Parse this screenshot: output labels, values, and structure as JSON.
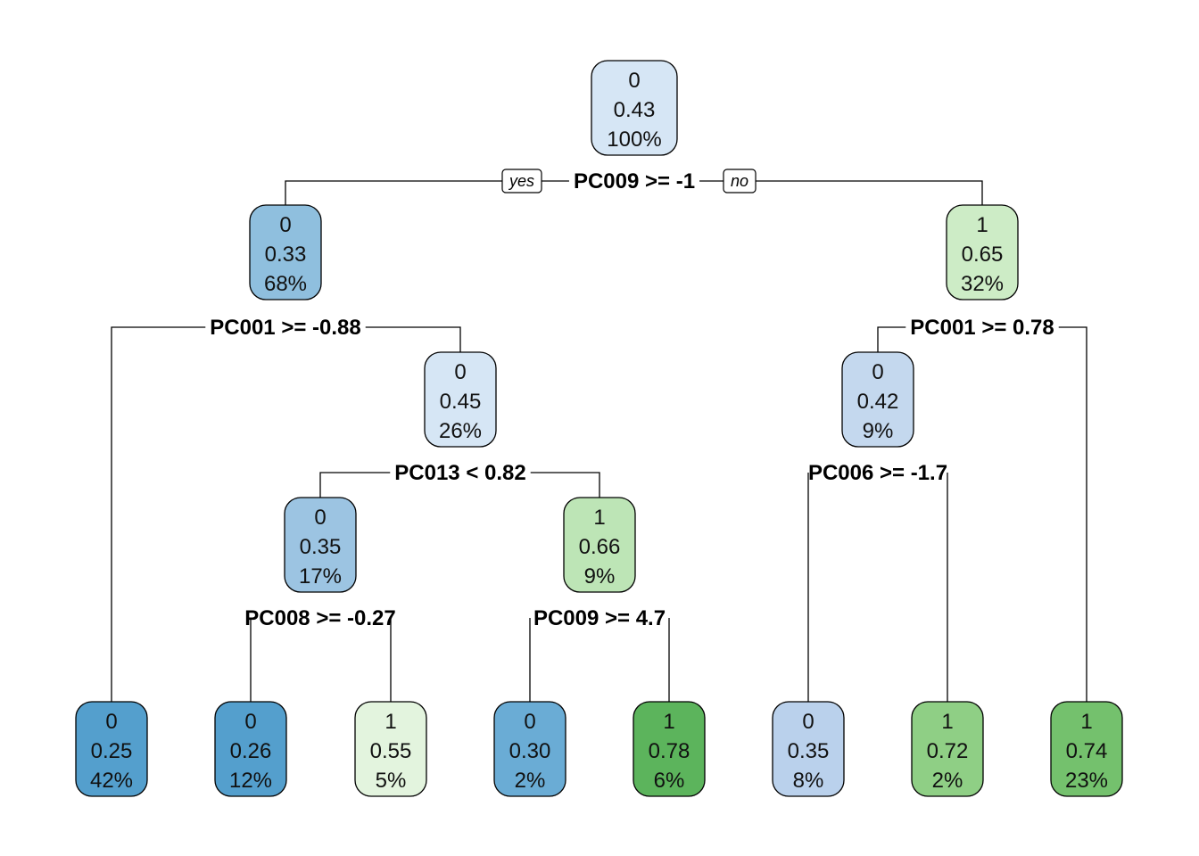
{
  "tree": {
    "branch_labels": {
      "yes": "yes",
      "no": "no"
    },
    "nodes": [
      {
        "id": "n1",
        "class": "0",
        "prob": "0.43",
        "pct": "100%",
        "fill": "#d6e6f5"
      },
      {
        "id": "n2",
        "class": "0",
        "prob": "0.33",
        "pct": "68%",
        "fill": "#8fbfde"
      },
      {
        "id": "n3",
        "class": "1",
        "prob": "0.65",
        "pct": "32%",
        "fill": "#cdecc6"
      },
      {
        "id": "n5",
        "class": "0",
        "prob": "0.45",
        "pct": "26%",
        "fill": "#d6e6f5"
      },
      {
        "id": "n6",
        "class": "0",
        "prob": "0.42",
        "pct": "9%",
        "fill": "#c4d8ee"
      },
      {
        "id": "n10",
        "class": "0",
        "prob": "0.35",
        "pct": "17%",
        "fill": "#9cc4e2"
      },
      {
        "id": "n11",
        "class": "1",
        "prob": "0.66",
        "pct": "9%",
        "fill": "#bde5b6"
      },
      {
        "id": "n4",
        "class": "0",
        "prob": "0.25",
        "pct": "42%",
        "fill": "#549fcd"
      },
      {
        "id": "n20",
        "class": "0",
        "prob": "0.26",
        "pct": "12%",
        "fill": "#549fcd"
      },
      {
        "id": "n21",
        "class": "1",
        "prob": "0.55",
        "pct": "5%",
        "fill": "#e3f4de"
      },
      {
        "id": "n22",
        "class": "0",
        "prob": "0.30",
        "pct": "2%",
        "fill": "#6aacd5"
      },
      {
        "id": "n23",
        "class": "1",
        "prob": "0.78",
        "pct": "6%",
        "fill": "#5cb45c"
      },
      {
        "id": "n12",
        "class": "0",
        "prob": "0.35",
        "pct": "8%",
        "fill": "#bad1ec"
      },
      {
        "id": "n13",
        "class": "1",
        "prob": "0.72",
        "pct": "2%",
        "fill": "#8fcf85"
      },
      {
        "id": "n7",
        "class": "1",
        "prob": "0.74",
        "pct": "23%",
        "fill": "#74c16d"
      }
    ],
    "splits": [
      {
        "id": "s1",
        "label": "PC009 >= -1"
      },
      {
        "id": "s2",
        "label": "PC001 >= -0.88"
      },
      {
        "id": "s3",
        "label": "PC001 >= 0.78"
      },
      {
        "id": "s5",
        "label": "PC013 < 0.82"
      },
      {
        "id": "s6",
        "label": "PC006 >= -1.7"
      },
      {
        "id": "s10",
        "label": "PC008 >= -0.27"
      },
      {
        "id": "s11",
        "label": "PC009 >= 4.7"
      }
    ]
  }
}
